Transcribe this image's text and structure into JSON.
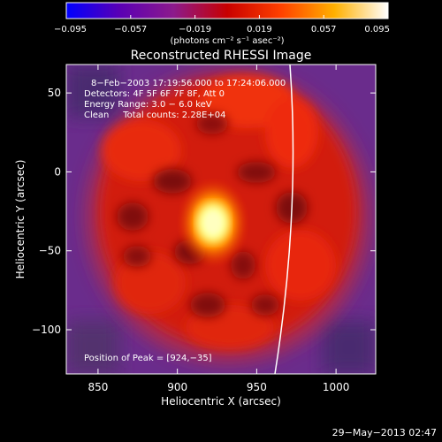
{
  "chart_data": {
    "type": "heatmap",
    "title": "Reconstructed RHESSI Image",
    "xlabel": "Heliocentric X (arcsec)",
    "ylabel": "Heliocentric Y (arcsec)",
    "xlim": [
      830,
      1025
    ],
    "ylim": [
      -128,
      68
    ],
    "xticks": [
      850,
      900,
      950,
      1000
    ],
    "yticks": [
      50,
      0,
      -50,
      -100
    ],
    "ytick_labels": [
      "50",
      "0",
      "−50",
      "−100"
    ],
    "colorbar": {
      "range": [
        -0.095,
        0.095
      ],
      "ticks": [
        -0.095,
        -0.057,
        -0.019,
        0.019,
        0.057,
        0.095
      ],
      "tick_labels": [
        "−0.095",
        "−0.057",
        "−0.019",
        "0.019",
        "0.057",
        "0.095"
      ],
      "units": "(photons cm⁻² s⁻¹ asec⁻²)",
      "colors": [
        "#0000ff",
        "#5a00b4",
        "#8c1a8c",
        "#c80000",
        "#ff4000",
        "#ffb000",
        "#ffffff"
      ]
    },
    "annotations": [
      "8−Feb−2003 17:19:56.000 to 17:24:06.000",
      "Detectors: 4F 5F 6F 7F 8F, Att 0",
      "Energy Range: 3.0 − 6.0 keV",
      "Clean     Total counts: 2.28E+04"
    ],
    "peak_label": "Position of Peak = [924,−35]",
    "peak": [
      924,
      -35
    ],
    "limb_color": "#ffffff",
    "background_color": "#000000"
  },
  "footer": {
    "timestamp": "29−May−2013 02:47"
  }
}
